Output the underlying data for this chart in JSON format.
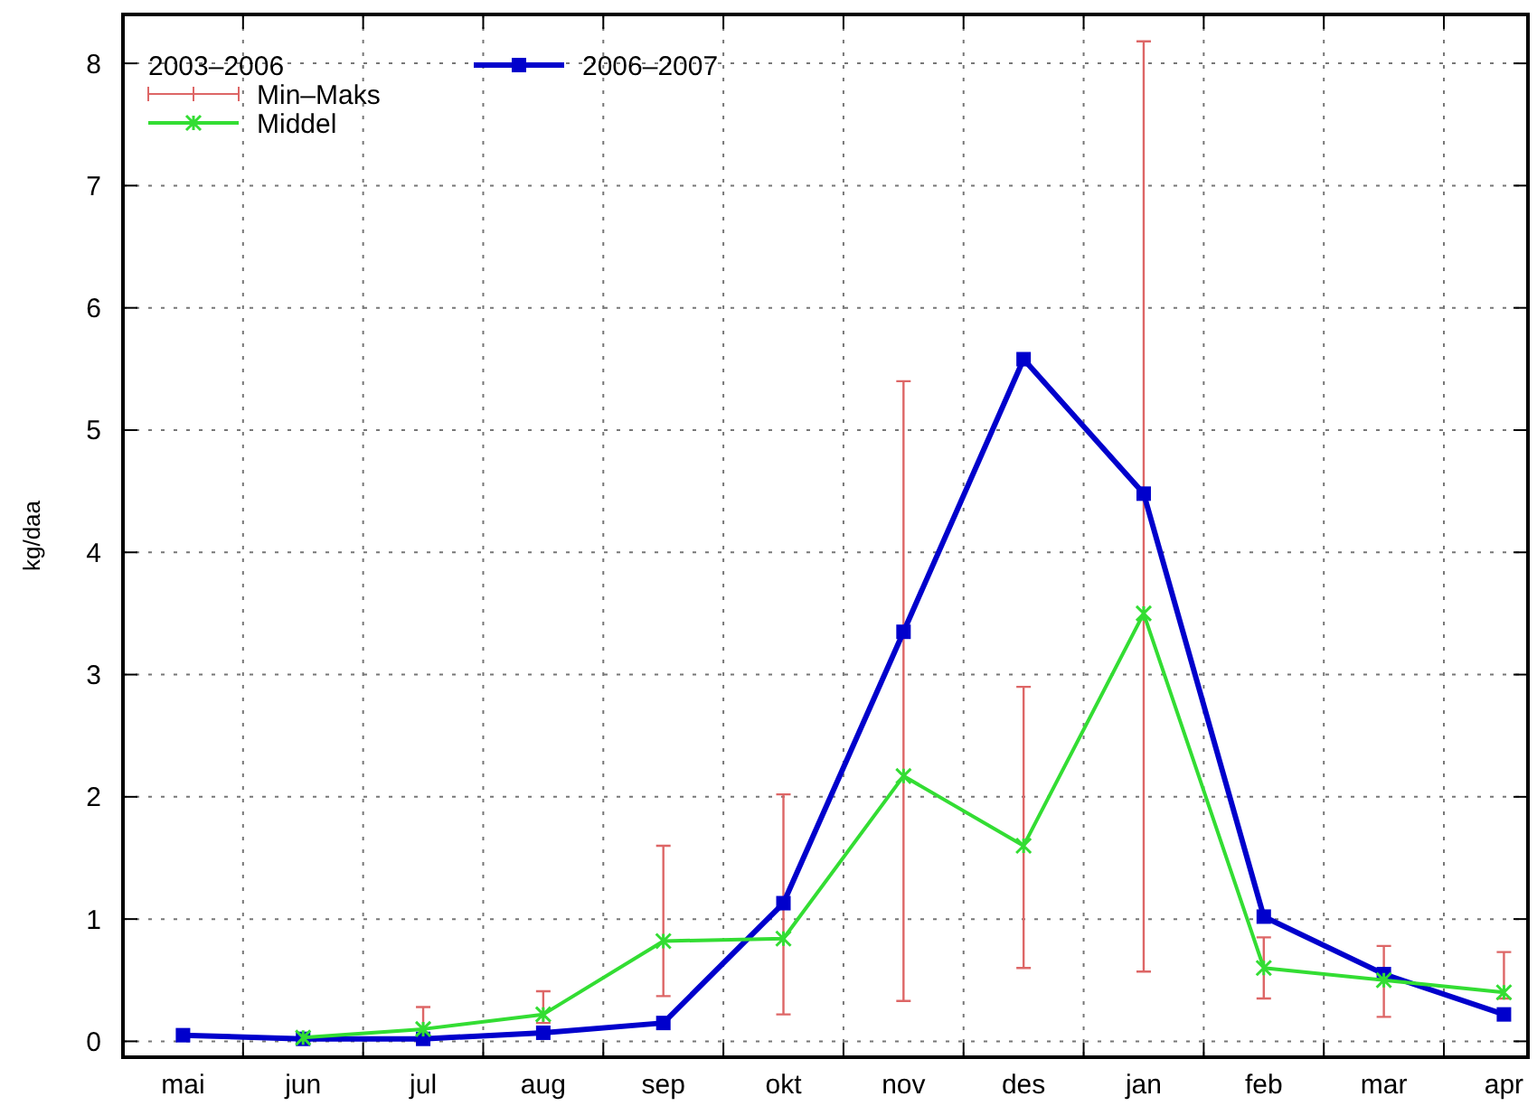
{
  "chart_data": {
    "type": "line",
    "ylabel": "kg/daa",
    "legend_title": "2003–2006",
    "annotations": [
      "Min–Maks"
    ],
    "categories": [
      "mai",
      "jun",
      "jul",
      "aug",
      "sep",
      "okt",
      "nov",
      "des",
      "jan",
      "feb",
      "mar",
      "apr"
    ],
    "series": [
      {
        "name": "Middel",
        "color": "#33dd33",
        "marker": "cross",
        "values": [
          null,
          0.03,
          0.1,
          0.22,
          0.82,
          0.84,
          2.17,
          1.6,
          3.5,
          0.6,
          0.5,
          0.4
        ],
        "errors": [
          null,
          null,
          [
            0.05,
            0.28
          ],
          [
            0.15,
            0.41
          ],
          [
            0.37,
            1.6
          ],
          [
            0.22,
            2.02
          ],
          [
            0.33,
            5.4
          ],
          [
            0.6,
            2.9
          ],
          [
            0.57,
            8.18
          ],
          [
            0.35,
            0.85
          ],
          [
            0.2,
            0.78
          ],
          [
            0.35,
            0.73
          ]
        ]
      },
      {
        "name": "2006–2007",
        "color": "#0000cc",
        "marker": "square",
        "values": [
          0.05,
          0.02,
          0.02,
          0.07,
          0.15,
          1.13,
          3.35,
          5.58,
          4.48,
          1.02,
          0.55,
          0.22
        ]
      }
    ],
    "ylim": [
      -0.13,
      8.4
    ],
    "yticks": [
      0,
      1,
      2,
      3,
      4,
      5,
      6,
      7,
      8
    ],
    "grid": true,
    "legend": "top left"
  }
}
